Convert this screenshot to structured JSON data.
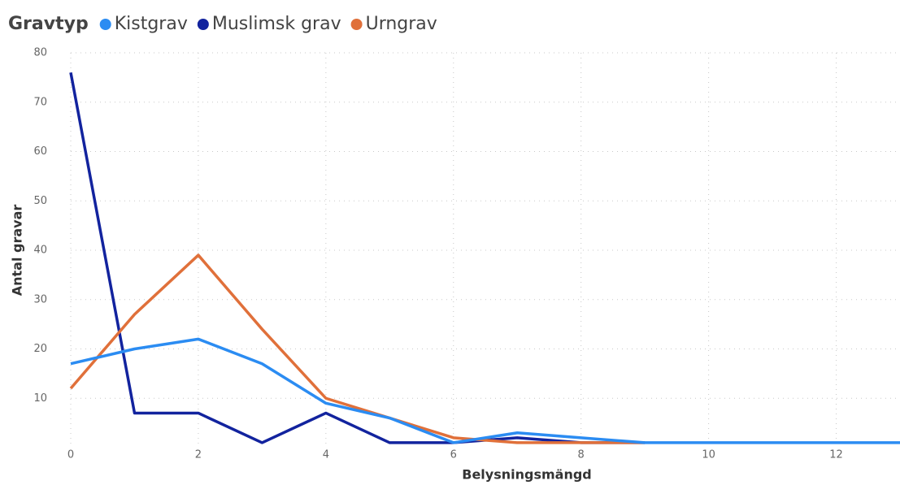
{
  "chart_data": {
    "type": "line",
    "legend_title": "Gravtyp",
    "x_label": "Belysningsmängd",
    "y_label": "Antal gravar",
    "xlim": [
      0,
      13
    ],
    "ylim": [
      0,
      80
    ],
    "xticks": [
      0,
      2,
      4,
      6,
      8,
      10,
      12
    ],
    "yticks": [
      10,
      20,
      30,
      40,
      50,
      60,
      70,
      80
    ],
    "grid": true,
    "legend_position": "top-left",
    "series": [
      {
        "name": "Kistgrav",
        "color": "#2b8cf2",
        "x": [
          0,
          1,
          2,
          3,
          4,
          5,
          6,
          7,
          8,
          9,
          10,
          11,
          12,
          13
        ],
        "values": [
          17,
          20,
          22,
          17,
          9,
          6,
          1,
          3,
          2,
          1,
          1,
          1,
          1,
          1
        ]
      },
      {
        "name": "Muslimsk grav",
        "color": "#12239e",
        "x": [
          0,
          1,
          2,
          3,
          4,
          5,
          6,
          7,
          8,
          9
        ],
        "values": [
          76,
          7,
          7,
          1,
          7,
          1,
          1,
          2,
          1,
          1
        ]
      },
      {
        "name": "Urngrav",
        "color": "#e0703a",
        "x": [
          0,
          1,
          2,
          3,
          4,
          5,
          6,
          7,
          8,
          9
        ],
        "values": [
          12,
          27,
          39,
          24,
          10,
          6,
          2,
          1,
          1,
          1
        ]
      }
    ]
  }
}
